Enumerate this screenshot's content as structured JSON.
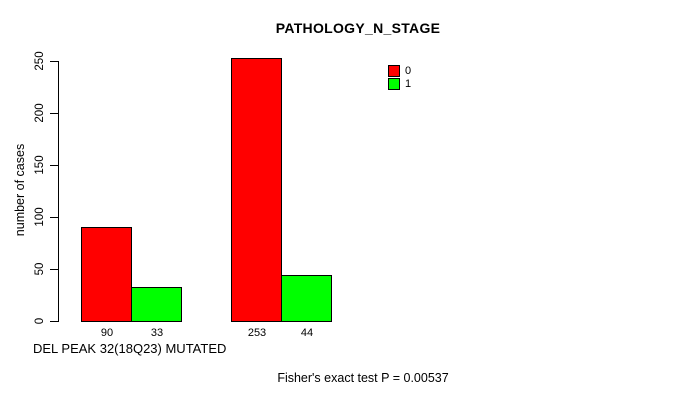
{
  "chart_data": {
    "type": "bar",
    "title": "PATHOLOGY_N_STAGE",
    "ylabel": "number of cases",
    "xlabel": "DEL PEAK 32(18Q23) MUTATED",
    "annotation": "Fisher's exact test P = 0.00537",
    "series": [
      {
        "name": "0",
        "color": "#ff0000",
        "values": [
          90,
          253
        ]
      },
      {
        "name": "1",
        "color": "#00ff00",
        "values": [
          33,
          44
        ]
      }
    ],
    "bar_labels": [
      "90",
      "33",
      "253",
      "44"
    ],
    "yticks": [
      0,
      50,
      100,
      150,
      200,
      250
    ],
    "ylim": [
      0,
      250
    ],
    "grid": false,
    "legend_position": "top-right",
    "axis_color": "#000000",
    "background_color": "#ffffff"
  }
}
